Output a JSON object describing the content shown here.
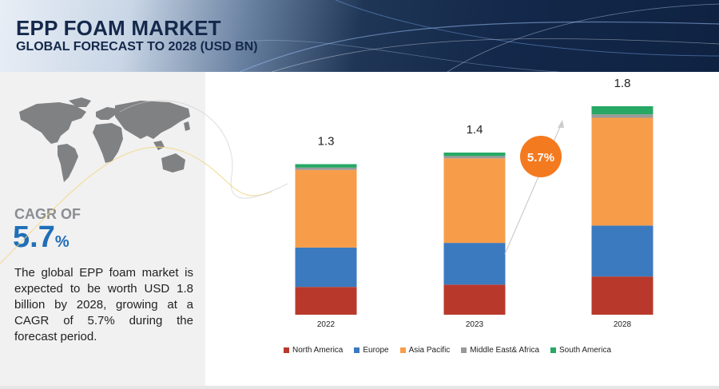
{
  "header": {
    "title": "EPP FOAM MARKET",
    "subtitle": "GLOBAL FORECAST TO 2028 (USD BN)"
  },
  "summary": {
    "cagr_label": "CAGR OF",
    "cagr_value": "5.7",
    "cagr_unit": "%",
    "description": "The global EPP foam market is expected to be worth USD 1.8 billion by 2028, growing at a CAGR of 5.7% during the forecast period."
  },
  "chart_data": {
    "type": "bar",
    "stacked": true,
    "categories": [
      "2022",
      "2023",
      "2028"
    ],
    "totals": [
      "1.3",
      "1.4",
      "1.8"
    ],
    "series": [
      {
        "name": "North America",
        "color": "#b8392c",
        "values": [
          0.24,
          0.26,
          0.33
        ]
      },
      {
        "name": "Europe",
        "color": "#3c7abf",
        "values": [
          0.34,
          0.36,
          0.44
        ]
      },
      {
        "name": "Asia Pacific",
        "color": "#f79d4a",
        "values": [
          0.67,
          0.73,
          0.93
        ]
      },
      {
        "name": "Middle East& Africa",
        "color": "#9a9a9a",
        "values": [
          0.02,
          0.02,
          0.03
        ]
      },
      {
        "name": "South America",
        "color": "#27a864",
        "values": [
          0.03,
          0.03,
          0.07
        ]
      }
    ],
    "cagr_badge": "5.7%",
    "ylim": [
      0,
      1.8
    ],
    "legend_position": "bottom",
    "grid": false
  }
}
